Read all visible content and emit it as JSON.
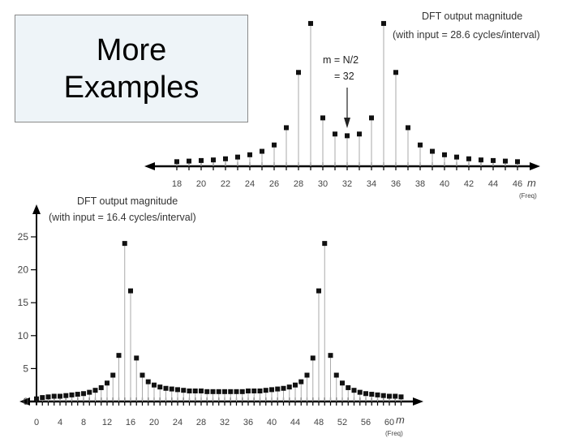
{
  "slide": {
    "title_line1": "More",
    "title_line2": "Examples"
  },
  "chart_data": [
    {
      "type": "stem",
      "title": "DFT output magnitude",
      "subtitle": "(with input = 28.6 cycles/interval)",
      "xlabel": "m",
      "xlabel_sub": "(Freq)",
      "annotation_line1": "m = N/2",
      "annotation_line2": "= 32",
      "annotation_x": 32,
      "x_ticks": [
        18,
        20,
        22,
        24,
        26,
        28,
        30,
        32,
        34,
        36,
        38,
        40,
        42,
        44,
        46
      ],
      "xlim": [
        17,
        47
      ],
      "ylim": [
        0,
        25
      ],
      "show_y_axis": false,
      "x": [
        18,
        19,
        20,
        21,
        22,
        23,
        24,
        25,
        26,
        27,
        28,
        29,
        30,
        31,
        32,
        33,
        34,
        35,
        36,
        37,
        38,
        39,
        40,
        41,
        42,
        43,
        44,
        45,
        46
      ],
      "values": [
        0.8,
        0.9,
        1.0,
        1.1,
        1.3,
        1.6,
        2.0,
        2.6,
        3.7,
        6.7,
        16.3,
        24.8,
        8.4,
        5.6,
        5.3,
        5.6,
        8.4,
        24.8,
        16.3,
        6.7,
        3.7,
        2.6,
        2.0,
        1.6,
        1.3,
        1.1,
        1.0,
        0.9,
        0.8
      ]
    },
    {
      "type": "stem",
      "title": "DFT output magnitude",
      "subtitle": "(with input = 16.4 cycles/interval)",
      "xlabel": "m",
      "xlabel_sub": "(Freq)",
      "x_ticks": [
        0,
        4,
        8,
        12,
        16,
        20,
        24,
        28,
        32,
        36,
        40,
        44,
        48,
        52,
        56,
        60
      ],
      "y_ticks": [
        0,
        5,
        10,
        15,
        20,
        25
      ],
      "xlim": [
        0,
        64
      ],
      "ylim": [
        0,
        25
      ],
      "show_y_axis": true,
      "x": [
        0,
        1,
        2,
        3,
        4,
        5,
        6,
        7,
        8,
        9,
        10,
        11,
        12,
        13,
        14,
        15,
        16,
        17,
        18,
        19,
        20,
        21,
        22,
        23,
        24,
        25,
        26,
        27,
        28,
        29,
        30,
        31,
        32,
        33,
        34,
        35,
        36,
        37,
        38,
        39,
        40,
        41,
        42,
        43,
        44,
        45,
        46,
        47,
        48,
        49,
        50,
        51,
        52,
        53,
        54,
        55,
        56,
        57,
        58,
        59,
        60,
        61,
        62
      ],
      "values": [
        0.4,
        0.6,
        0.7,
        0.8,
        0.8,
        0.9,
        1.0,
        1.1,
        1.2,
        1.4,
        1.7,
        2.1,
        2.8,
        4.0,
        7.0,
        24.0,
        16.8,
        6.6,
        4.0,
        3.0,
        2.5,
        2.2,
        2.0,
        1.9,
        1.8,
        1.7,
        1.6,
        1.6,
        1.6,
        1.5,
        1.5,
        1.5,
        1.5,
        1.5,
        1.5,
        1.5,
        1.6,
        1.6,
        1.6,
        1.7,
        1.8,
        1.9,
        2.0,
        2.2,
        2.5,
        3.0,
        4.0,
        6.6,
        16.8,
        24.0,
        7.0,
        4.0,
        2.8,
        2.1,
        1.7,
        1.4,
        1.2,
        1.1,
        1.0,
        0.9,
        0.8,
        0.8,
        0.7
      ]
    }
  ]
}
